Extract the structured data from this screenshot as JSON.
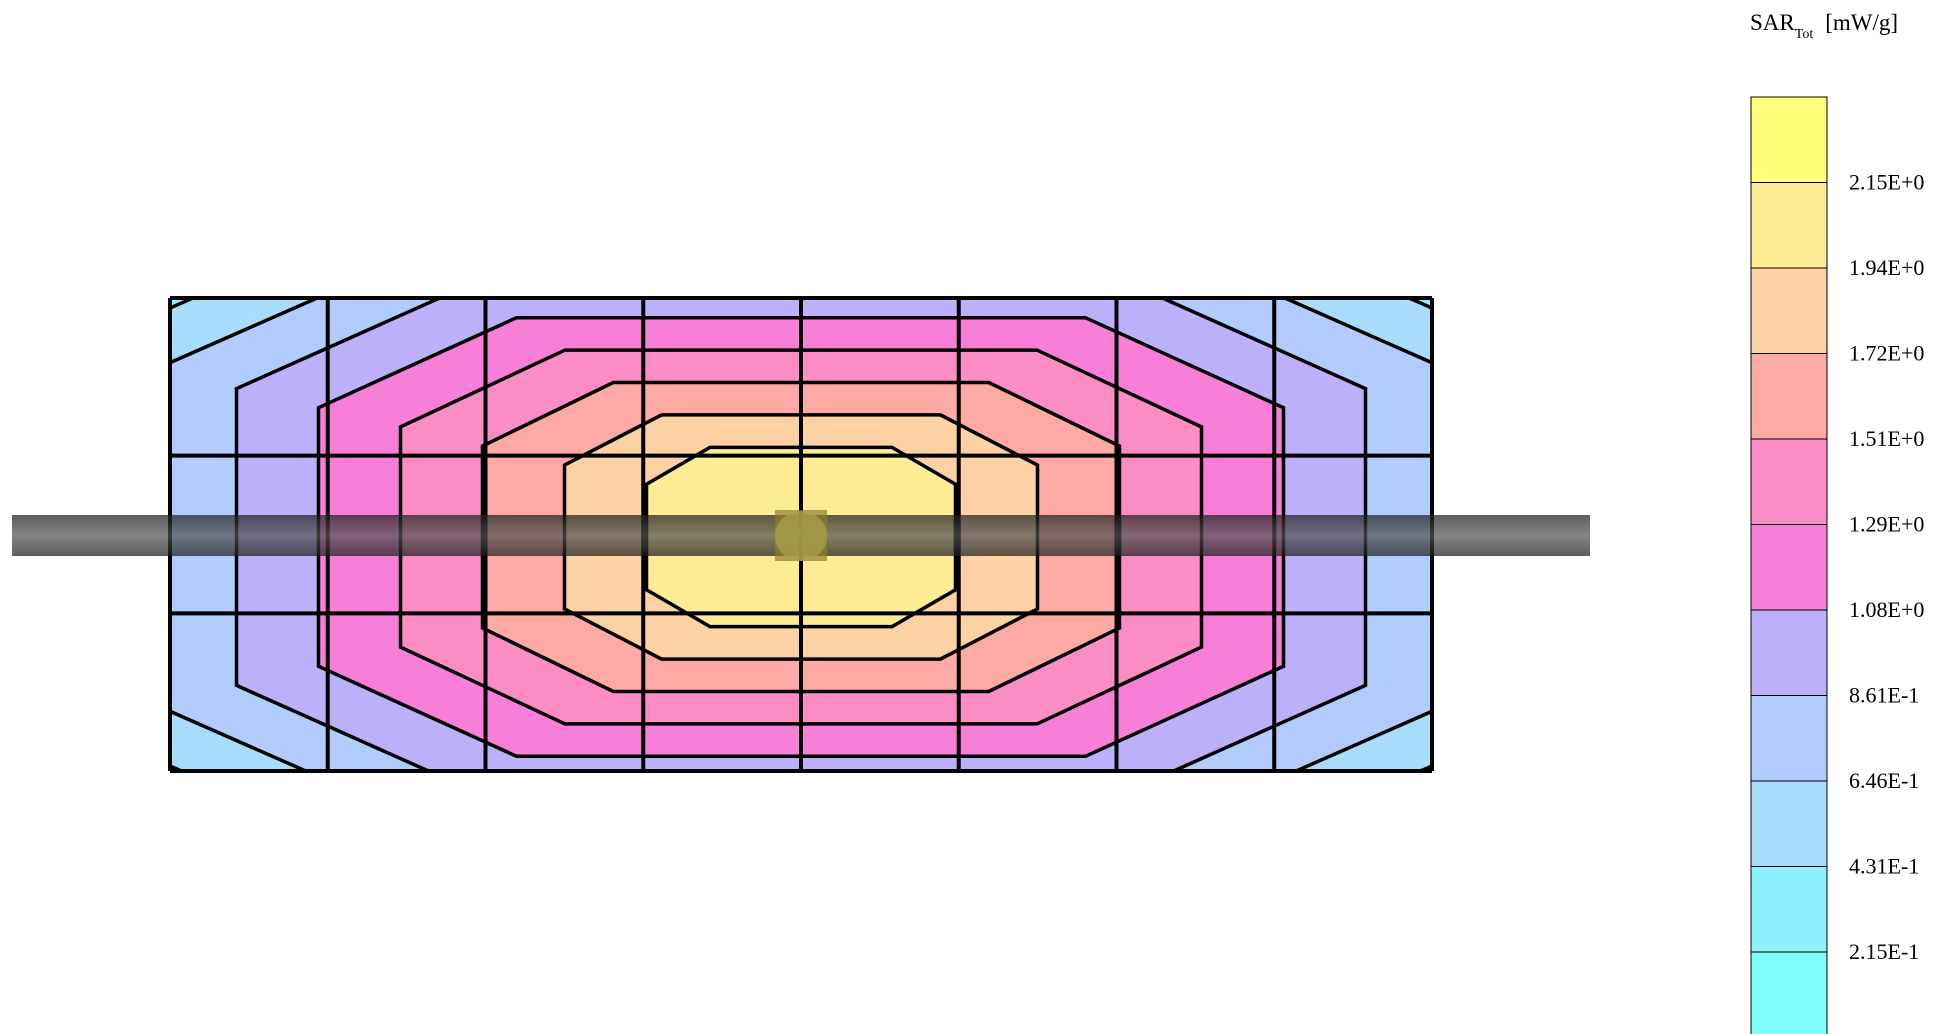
{
  "chart_data": {
    "type": "heatmap",
    "title": "SAR",
    "title_subscript": "Tot",
    "units": "[mW/g]",
    "colorbar": {
      "orientation": "vertical",
      "placement": "right",
      "levels_high_to_low": [
        {
          "color": "#ffff7a",
          "label": null
        },
        {
          "color": "#fdec94",
          "label": "2.15E+0"
        },
        {
          "color": "#fcd2a4",
          "label": "1.94E+0"
        },
        {
          "color": "#fdaaa4",
          "label": "1.72E+0"
        },
        {
          "color": "#fb8dc4",
          "label": "1.51E+0"
        },
        {
          "color": "#f77fd7",
          "label": "1.29E+0"
        },
        {
          "color": "#bbb0f9",
          "label": "1.08E+0"
        },
        {
          "color": "#b1ccfc",
          "label": "8.61E-1"
        },
        {
          "color": "#a8dcfc",
          "label": "6.46E-1"
        },
        {
          "color": "#8cf1fc",
          "label": "4.31E-1"
        },
        {
          "color": "#80fcfc",
          "label": "2.15E-1"
        }
      ]
    },
    "grid": true,
    "grid_columns": 8,
    "grid_rows": 3,
    "center_peak_level": 1
  }
}
